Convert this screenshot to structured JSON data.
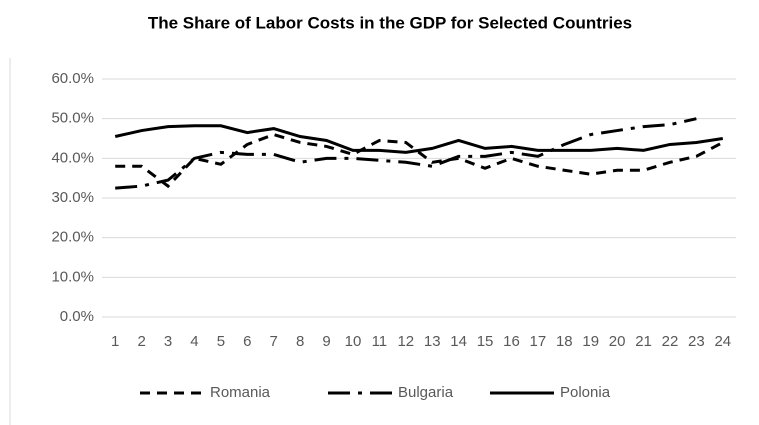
{
  "chart_data": {
    "type": "line",
    "title": "The Share of Labor Costs in the GDP for Selected Countries",
    "categories": [
      "1",
      "2",
      "3",
      "4",
      "5",
      "6",
      "7",
      "8",
      "9",
      "10",
      "11",
      "12",
      "13",
      "14",
      "15",
      "16",
      "17",
      "18",
      "19",
      "20",
      "21",
      "22",
      "23",
      "24"
    ],
    "series": [
      {
        "name": "Romania",
        "color": "#000000",
        "dash": "dash",
        "values": [
          38,
          38,
          33,
          40,
          38.5,
          43.5,
          46,
          44,
          43,
          41,
          44.5,
          44,
          39,
          40,
          37.5,
          40,
          38,
          37,
          36,
          37,
          37,
          39,
          40.5,
          44
        ]
      },
      {
        "name": "Bulgaria",
        "color": "#000000",
        "dash": "longdash-dot",
        "values": [
          32.5,
          33,
          34.5,
          40,
          41.5,
          41,
          41,
          39,
          40,
          40,
          39.5,
          39,
          38,
          40.5,
          40.5,
          41.5,
          40.5,
          43.5,
          46,
          47,
          48,
          48.5,
          50,
          null
        ]
      },
      {
        "name": "Polonia",
        "color": "#000000",
        "dash": "solid",
        "values": [
          45.5,
          47,
          48,
          48.2,
          48.2,
          46.5,
          47.5,
          45.5,
          44.5,
          42,
          42,
          41.5,
          42.5,
          44.5,
          42.5,
          43,
          42,
          42,
          42,
          42.5,
          42,
          43.5,
          44,
          45
        ]
      }
    ],
    "ylim": [
      0,
      60
    ],
    "yticks": [
      {
        "value": 0,
        "label": "0.0%"
      },
      {
        "value": 10,
        "label": "10.0%"
      },
      {
        "value": 20,
        "label": "20.0%"
      },
      {
        "value": 30,
        "label": "30.0%"
      },
      {
        "value": 40,
        "label": "40.0%"
      },
      {
        "value": 50,
        "label": "50.0%"
      },
      {
        "value": 60,
        "label": "60.0%"
      }
    ],
    "grid": true,
    "legend": "bottom"
  }
}
